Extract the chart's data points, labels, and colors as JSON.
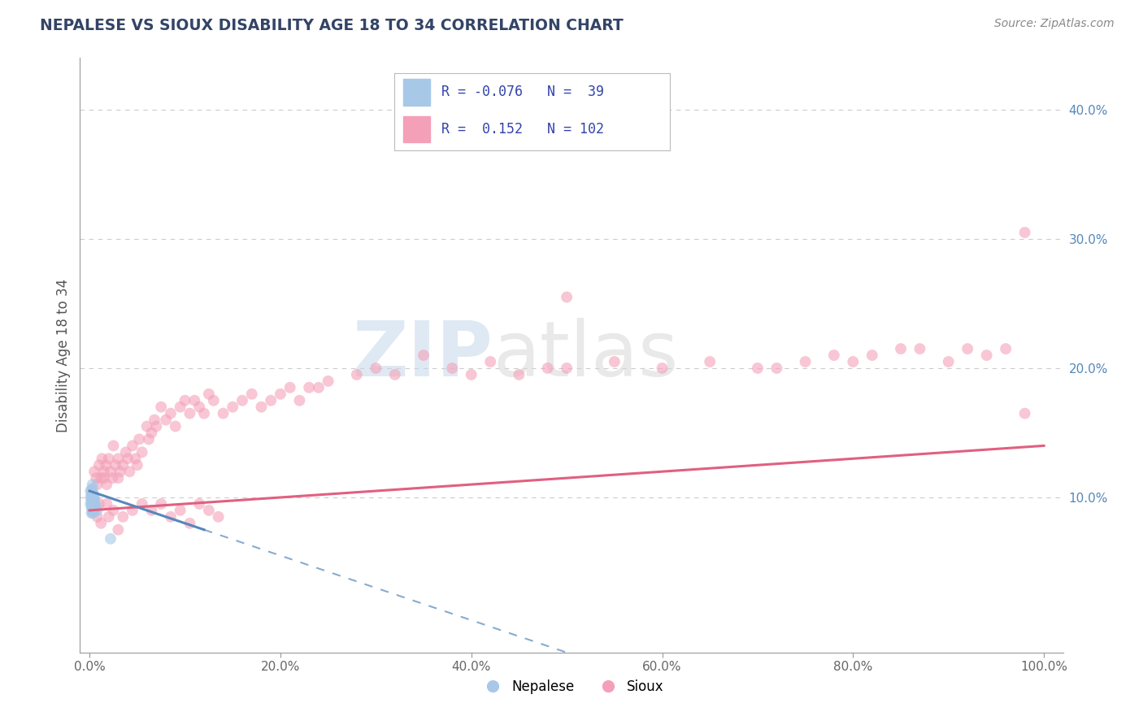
{
  "title": "NEPALESE VS SIOUX DISABILITY AGE 18 TO 34 CORRELATION CHART",
  "source_text": "Source: ZipAtlas.com",
  "ylabel": "Disability Age 18 to 34",
  "xtick_labels": [
    "0.0%",
    "20.0%",
    "40.0%",
    "60.0%",
    "80.0%",
    "100.0%"
  ],
  "xtick_vals": [
    0.0,
    0.2,
    0.4,
    0.6,
    0.8,
    1.0
  ],
  "ytick_labels": [
    "10.0%",
    "20.0%",
    "30.0%",
    "40.0%"
  ],
  "ytick_vals": [
    0.1,
    0.2,
    0.3,
    0.4
  ],
  "nepalese_color": "#a8c8e8",
  "sioux_color": "#f4a0b8",
  "trend_nepalese_color": "#5588bb",
  "trend_sioux_color": "#e06080",
  "watermark_zip": "ZIP",
  "watermark_atlas": "atlas",
  "legend_r_nepalese": "-0.076",
  "legend_n_nepalese": "39",
  "legend_r_sioux": "0.152",
  "legend_n_sioux": "102",
  "nepalese_x": [
    0.001,
    0.001,
    0.001,
    0.002,
    0.002,
    0.002,
    0.002,
    0.002,
    0.002,
    0.002,
    0.003,
    0.003,
    0.003,
    0.003,
    0.003,
    0.003,
    0.003,
    0.003,
    0.003,
    0.003,
    0.003,
    0.004,
    0.004,
    0.004,
    0.004,
    0.004,
    0.004,
    0.004,
    0.004,
    0.005,
    0.005,
    0.005,
    0.005,
    0.005,
    0.006,
    0.006,
    0.007,
    0.008,
    0.022
  ],
  "nepalese_y": [
    0.095,
    0.1,
    0.105,
    0.088,
    0.092,
    0.095,
    0.098,
    0.1,
    0.103,
    0.106,
    0.088,
    0.09,
    0.092,
    0.094,
    0.096,
    0.098,
    0.1,
    0.102,
    0.104,
    0.107,
    0.11,
    0.088,
    0.09,
    0.092,
    0.094,
    0.096,
    0.098,
    0.1,
    0.103,
    0.09,
    0.092,
    0.095,
    0.098,
    0.1,
    0.092,
    0.095,
    0.092,
    0.09,
    0.068
  ],
  "sioux_x": [
    0.005,
    0.007,
    0.008,
    0.01,
    0.012,
    0.013,
    0.015,
    0.015,
    0.017,
    0.018,
    0.02,
    0.022,
    0.024,
    0.025,
    0.027,
    0.03,
    0.03,
    0.032,
    0.035,
    0.038,
    0.04,
    0.042,
    0.045,
    0.048,
    0.05,
    0.052,
    0.055,
    0.06,
    0.062,
    0.065,
    0.068,
    0.07,
    0.075,
    0.08,
    0.085,
    0.09,
    0.095,
    0.1,
    0.105,
    0.11,
    0.115,
    0.12,
    0.125,
    0.13,
    0.14,
    0.15,
    0.16,
    0.17,
    0.18,
    0.19,
    0.2,
    0.21,
    0.22,
    0.23,
    0.24,
    0.25,
    0.28,
    0.3,
    0.32,
    0.35,
    0.38,
    0.4,
    0.42,
    0.45,
    0.48,
    0.5,
    0.55,
    0.6,
    0.65,
    0.7,
    0.72,
    0.75,
    0.78,
    0.8,
    0.82,
    0.85,
    0.87,
    0.9,
    0.92,
    0.94,
    0.96,
    0.98,
    0.01,
    0.02,
    0.03,
    0.008,
    0.012,
    0.018,
    0.025,
    0.035,
    0.045,
    0.055,
    0.065,
    0.075,
    0.085,
    0.095,
    0.105,
    0.115,
    0.125,
    0.135,
    0.5,
    0.98
  ],
  "sioux_y": [
    0.12,
    0.115,
    0.11,
    0.125,
    0.115,
    0.13,
    0.115,
    0.12,
    0.125,
    0.11,
    0.13,
    0.12,
    0.115,
    0.14,
    0.125,
    0.115,
    0.13,
    0.12,
    0.125,
    0.135,
    0.13,
    0.12,
    0.14,
    0.13,
    0.125,
    0.145,
    0.135,
    0.155,
    0.145,
    0.15,
    0.16,
    0.155,
    0.17,
    0.16,
    0.165,
    0.155,
    0.17,
    0.175,
    0.165,
    0.175,
    0.17,
    0.165,
    0.18,
    0.175,
    0.165,
    0.17,
    0.175,
    0.18,
    0.17,
    0.175,
    0.18,
    0.185,
    0.175,
    0.185,
    0.185,
    0.19,
    0.195,
    0.2,
    0.195,
    0.21,
    0.2,
    0.195,
    0.205,
    0.195,
    0.2,
    0.2,
    0.205,
    0.2,
    0.205,
    0.2,
    0.2,
    0.205,
    0.21,
    0.205,
    0.21,
    0.215,
    0.215,
    0.205,
    0.215,
    0.21,
    0.215,
    0.165,
    0.095,
    0.085,
    0.075,
    0.085,
    0.08,
    0.095,
    0.09,
    0.085,
    0.09,
    0.095,
    0.09,
    0.095,
    0.085,
    0.09,
    0.08,
    0.095,
    0.09,
    0.085,
    0.255,
    0.305
  ],
  "background_color": "#ffffff",
  "grid_color": "#cccccc"
}
